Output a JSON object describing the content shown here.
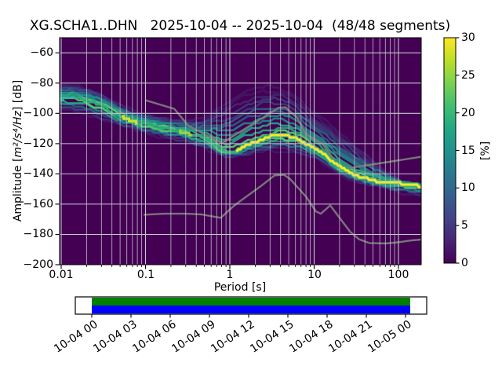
{
  "figure": {
    "title": "XG.SCHA1..DHN   2025-10-04 -- 2025-10-04  (48/48 segments)"
  },
  "axes": {
    "xlabel": "Period [s]",
    "ylabel_prefix": "Amplitude [",
    "ylabel_math": "m²/s⁴/Hz",
    "ylabel_suffix": "] [dB]",
    "x_tick_labels": [
      "0.01",
      "0.1",
      "1",
      "10",
      "100"
    ],
    "y_tick_labels": [
      "−60",
      "−80",
      "−100",
      "−120",
      "−140",
      "−160",
      "−180",
      "−200"
    ]
  },
  "colorbar": {
    "label": "[%]",
    "tick_labels": [
      "0",
      "5",
      "10",
      "15",
      "20",
      "25",
      "30"
    ],
    "range": [
      0,
      30
    ],
    "gradient": [
      [
        0.0,
        "#440154"
      ],
      [
        0.1,
        "#482475"
      ],
      [
        0.2,
        "#414487"
      ],
      [
        0.3,
        "#355f8d"
      ],
      [
        0.4,
        "#2a788e"
      ],
      [
        0.5,
        "#21918c"
      ],
      [
        0.6,
        "#22a884"
      ],
      [
        0.7,
        "#44bf70"
      ],
      [
        0.8,
        "#7ad151"
      ],
      [
        0.9,
        "#bddf26"
      ],
      [
        1.0,
        "#fde725"
      ]
    ]
  },
  "colors": {
    "background": "#ffffff",
    "plot_bg": "#440154",
    "grid": "#c6c3ce",
    "noise_model": "#7a7a7a",
    "mode": "#fde725",
    "mode_halo": "#4ac16d",
    "mode_left": "#29ab82",
    "timeline_green": "#008000",
    "timeline_blue": "#0000ff",
    "spine": "#000000"
  },
  "chart_data": {
    "type": "heatmap",
    "title": "XG.SCHA1..DHN   2025-10-04 -- 2025-10-04  (48/48 segments)",
    "xlabel": "Period [s]",
    "ylabel": "Amplitude [m2/s4/Hz] [dB]",
    "xscale": "log",
    "xlim": [
      0.0096,
      186
    ],
    "ylim": [
      -200,
      -50
    ],
    "grid": true,
    "colorbar_label": "[%]",
    "colorbar_range": [
      0,
      30
    ],
    "segments_used": 48,
    "segments_total": 48,
    "mode_highlights": [
      [
        0.0096,
        0.0145,
        "#2bb89a"
      ],
      [
        0.052,
        0.08,
        "#cfe11d"
      ],
      [
        0.25,
        0.36,
        "#8ed645"
      ]
    ],
    "series": [
      {
        "name": "psd_mode",
        "label": "PSD probability mode [dB]",
        "points": [
          [
            0.01,
            -90
          ],
          [
            0.013,
            -89
          ],
          [
            0.02,
            -91.5
          ],
          [
            0.03,
            -95
          ],
          [
            0.04,
            -98.5
          ],
          [
            0.05,
            -101.5
          ],
          [
            0.065,
            -104.5
          ],
          [
            0.08,
            -106
          ],
          [
            0.1,
            -107
          ],
          [
            0.13,
            -108.5
          ],
          [
            0.2,
            -110.5
          ],
          [
            0.3,
            -112.5
          ],
          [
            0.4,
            -114.5
          ],
          [
            0.5,
            -116.5
          ],
          [
            0.65,
            -120
          ],
          [
            0.8,
            -124
          ],
          [
            1.0,
            -125.8
          ],
          [
            1.15,
            -125
          ],
          [
            1.4,
            -122.5
          ],
          [
            1.8,
            -119.5
          ],
          [
            2.5,
            -117
          ],
          [
            3.2,
            -115.5
          ],
          [
            4.0,
            -114.5
          ],
          [
            5.0,
            -115
          ],
          [
            6.0,
            -116.5
          ],
          [
            8.0,
            -119.5
          ],
          [
            10,
            -122.5
          ],
          [
            13,
            -127
          ],
          [
            16,
            -131.5
          ],
          [
            20,
            -135.5
          ],
          [
            25,
            -138.5
          ],
          [
            30,
            -140.5
          ],
          [
            40,
            -142.5
          ],
          [
            50,
            -144
          ],
          [
            70,
            -145.5
          ],
          [
            100,
            -146.5
          ],
          [
            140,
            -147.5
          ],
          [
            186,
            -148.5
          ]
        ]
      },
      {
        "name": "psd_upper_envelope",
        "label": "upper extent of PSD distribution [dB]",
        "points": [
          [
            0.01,
            -81
          ],
          [
            0.02,
            -83
          ],
          [
            0.03,
            -87
          ],
          [
            0.05,
            -94.5
          ],
          [
            0.07,
            -98
          ],
          [
            0.1,
            -100.5
          ],
          [
            0.15,
            -102.5
          ],
          [
            0.2,
            -104
          ],
          [
            0.3,
            -104.5
          ],
          [
            0.45,
            -104
          ],
          [
            0.7,
            -96
          ],
          [
            1.0,
            -90
          ],
          [
            1.5,
            -84.5
          ],
          [
            2.5,
            -81
          ],
          [
            4.0,
            -81.5
          ],
          [
            6.0,
            -87
          ],
          [
            10,
            -99
          ],
          [
            15,
            -105.5
          ],
          [
            20,
            -111.5
          ],
          [
            30,
            -120
          ],
          [
            45,
            -129
          ],
          [
            70,
            -138
          ],
          [
            100,
            -143.5
          ],
          [
            140,
            -146.5
          ],
          [
            186,
            -147.5
          ]
        ]
      },
      {
        "name": "psd_lower_envelope",
        "label": "lower extent of PSD distribution [dB]",
        "points": [
          [
            0.01,
            -97.5
          ],
          [
            0.02,
            -100.5
          ],
          [
            0.03,
            -104
          ],
          [
            0.05,
            -108
          ],
          [
            0.1,
            -113
          ],
          [
            0.2,
            -117
          ],
          [
            0.3,
            -119
          ],
          [
            0.5,
            -123.5
          ],
          [
            0.7,
            -126.5
          ],
          [
            0.9,
            -128.5
          ],
          [
            1.2,
            -128.5
          ],
          [
            1.5,
            -128
          ],
          [
            2,
            -126.5
          ],
          [
            3,
            -125
          ],
          [
            4,
            -124.5
          ],
          [
            6,
            -126
          ],
          [
            10,
            -130
          ],
          [
            15,
            -135.5
          ],
          [
            20,
            -140
          ],
          [
            30,
            -144.5
          ],
          [
            50,
            -148
          ],
          [
            100,
            -152
          ],
          [
            150,
            -153.5
          ],
          [
            186,
            -154.5
          ]
        ]
      },
      {
        "name": "nhnm",
        "label": "high noise model (gray)",
        "points": [
          [
            0.1,
            -91.3
          ],
          [
            0.22,
            -97
          ],
          [
            0.32,
            -108
          ],
          [
            0.5,
            -113.8
          ],
          [
            0.8,
            -119.8
          ],
          [
            3.8,
            -96.3
          ],
          [
            4.6,
            -96
          ],
          [
            6.3,
            -103
          ],
          [
            7.9,
            -113.5
          ],
          [
            12.5,
            -120
          ],
          [
            21,
            -137
          ],
          [
            186,
            -128.7
          ]
        ]
      },
      {
        "name": "nlnm",
        "label": "low noise model (gray)",
        "points": [
          [
            0.095,
            -167
          ],
          [
            0.17,
            -166.3
          ],
          [
            0.3,
            -166.3
          ],
          [
            0.46,
            -166.8
          ],
          [
            0.78,
            -169
          ],
          [
            1.1,
            -161.5
          ],
          [
            1.4,
            -157
          ],
          [
            2.3,
            -148.3
          ],
          [
            3.4,
            -141
          ],
          [
            4.4,
            -140.6
          ],
          [
            5.2,
            -143.5
          ],
          [
            8,
            -155
          ],
          [
            10.5,
            -164.8
          ],
          [
            12,
            -166.3
          ],
          [
            15.5,
            -160.8
          ],
          [
            22,
            -172
          ],
          [
            27,
            -178.5
          ],
          [
            34,
            -183.2
          ],
          [
            45,
            -185.7
          ],
          [
            70,
            -186
          ],
          [
            100,
            -185.2
          ],
          [
            140,
            -184
          ],
          [
            186,
            -183.4
          ]
        ]
      }
    ],
    "timeline": {
      "labels": [
        "10-04 00",
        "10-04 03",
        "10-04 06",
        "10-04 09",
        "10-04 12",
        "10-04 15",
        "10-04 18",
        "10-04 21",
        "10-05 00"
      ],
      "coverage_start": "10-04 00",
      "coverage_end": "10-05 00"
    }
  }
}
